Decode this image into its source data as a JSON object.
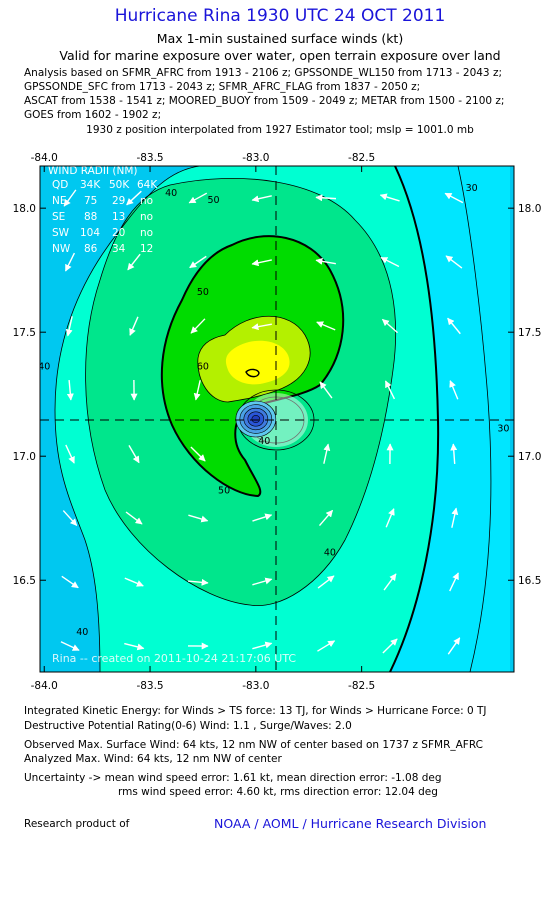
{
  "header": {
    "title": "Hurricane Rina 1930 UTC 24 OCT 2011",
    "subtitle1": "Max 1-min sustained surface winds (kt)",
    "subtitle2": "Valid for marine exposure over water, open terrain exposure over land",
    "analysis_lines": [
      "Analysis based on SFMR_AFRC from 1913 - 2106 z; GPSSONDE_WL150 from 1713 - 2043 z;",
      "GPSSONDE_SFC from 1713 - 2043 z; SFMR_AFRC_FLAG from 1837 - 2050 z;",
      "ASCAT from 1538 - 1541 z; MOORED_BUOY from 1509 - 2049 z; METAR from 1500 - 2100 z;",
      "GOES from 1602 - 1902 z;"
    ],
    "interp": "1930 z position interpolated from 1927 Estimator tool; mslp = 1001.0 mb"
  },
  "chart_data": {
    "type": "contour",
    "center": {
      "lon": -83.0,
      "lat": 17.15
    },
    "x_ticks": [
      "-84.0",
      "-83.5",
      "-83.0",
      "-82.5"
    ],
    "y_ticks": [
      "18.0",
      "17.5",
      "17.0",
      "16.5"
    ],
    "x_tick_values": [
      -84.0,
      -83.5,
      -83.0,
      -82.5
    ],
    "y_tick_values": [
      18.0,
      17.5,
      17.0,
      16.5
    ],
    "xlim": [
      -84.02,
      -81.78
    ],
    "ylim": [
      16.13,
      18.17
    ],
    "contour_labels": [
      {
        "text": "40",
        "lon": -83.4,
        "lat": 18.05
      },
      {
        "text": "50",
        "lon": -83.2,
        "lat": 18.02
      },
      {
        "text": "40",
        "lon": -84.0,
        "lat": 17.35
      },
      {
        "text": "50",
        "lon": -83.25,
        "lat": 17.65
      },
      {
        "text": "60",
        "lon": -83.25,
        "lat": 17.35
      },
      {
        "text": "40",
        "lon": -82.96,
        "lat": 17.05
      },
      {
        "text": "50",
        "lon": -83.15,
        "lat": 16.85
      },
      {
        "text": "40",
        "lon": -82.65,
        "lat": 16.6
      },
      {
        "text": "40",
        "lon": -83.82,
        "lat": 16.28
      },
      {
        "text": "30",
        "lon": -81.98,
        "lat": 18.07
      },
      {
        "text": "30",
        "lon": -81.83,
        "lat": 17.1
      }
    ],
    "wind_radii": {
      "title": "WIND RADII (NM)",
      "header": [
        "QD",
        "34K",
        "50K",
        "64K"
      ],
      "rows": [
        [
          "NE",
          "75",
          "29",
          "no"
        ],
        [
          "SE",
          "88",
          "13",
          "no"
        ],
        [
          "SW",
          "104",
          "20",
          "no"
        ],
        [
          "NW",
          "86",
          "34",
          "12"
        ]
      ]
    },
    "credit": "Rina -- created on 2011-10-24 21:17:06 UTC",
    "colors": {
      "c30": "#00c8f0",
      "c30b": "#00e6ff",
      "c40": "#00ffd2",
      "c50": "#00e68c",
      "c60": "#00dc00",
      "c60b": "#b4f000",
      "c70": "#ffff00",
      "eye": "#2a56d8",
      "frame": "#000000"
    }
  },
  "footer": {
    "ike": "Integrated Kinetic Energy:  for Winds > TS force: 13 TJ,  for Winds > Hurricane Force: 0 TJ",
    "dpr": "Destructive Potential Rating(0-6)   Wind: 1.1 , Surge/Waves: 2.0",
    "obs_max": "Observed Max. Surface Wind: 64 kts, 12 nm NW of center based on 1737 z SFMR_AFRC",
    "ana_max": "Analyzed Max. Wind: 64 kts, 12 nm NW of center",
    "unc1": "Uncertainty -> mean wind speed error: 1.61 kt,   mean direction error:  -1.08 deg",
    "unc2": "rms wind speed error: 4.60 kt,   rms direction error: 12.04 deg",
    "research": "Research product of",
    "noaa": "NOAA / AOML / Hurricane Research Division"
  }
}
